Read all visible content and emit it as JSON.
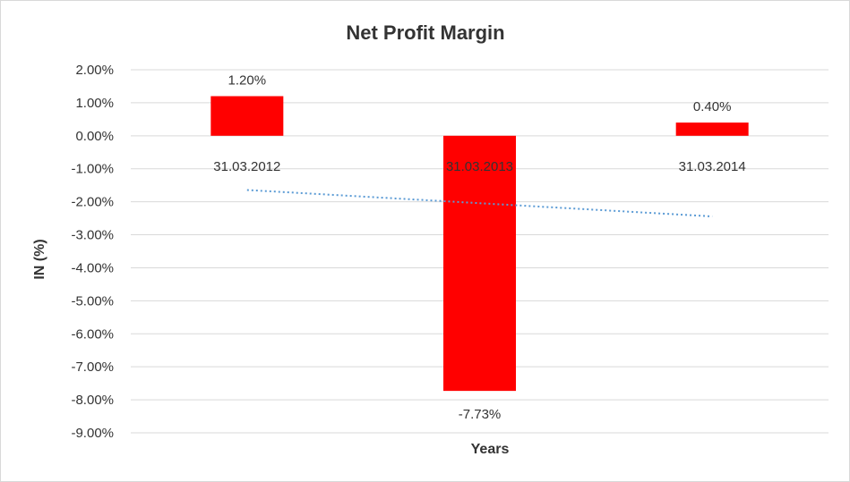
{
  "chart_data": {
    "type": "bar",
    "title": "Net Profit Margin",
    "xlabel": "Years",
    "ylabel": "IN (%)",
    "categories": [
      "31.03.2012",
      "31.03.2013",
      "31.03.2014"
    ],
    "values": [
      1.2,
      -7.73,
      0.4
    ],
    "data_labels": [
      "1.20%",
      "-7.73%",
      "0.40%"
    ],
    "ylim": [
      -9,
      2
    ],
    "yticks": [
      2,
      1,
      0,
      -1,
      -2,
      -3,
      -4,
      -5,
      -6,
      -7,
      -8,
      -9
    ],
    "ytick_labels": [
      "2.00%",
      "1.00%",
      "0.00%",
      "-1.00%",
      "-2.00%",
      "-3.00%",
      "-4.00%",
      "-5.00%",
      "-6.00%",
      "-7.00%",
      "-8.00%",
      "-9.00%"
    ],
    "grid": true,
    "bar_color": "#ff0000",
    "trendline": {
      "type": "linear",
      "style": "dotted",
      "color": "#5b9bd5"
    }
  }
}
